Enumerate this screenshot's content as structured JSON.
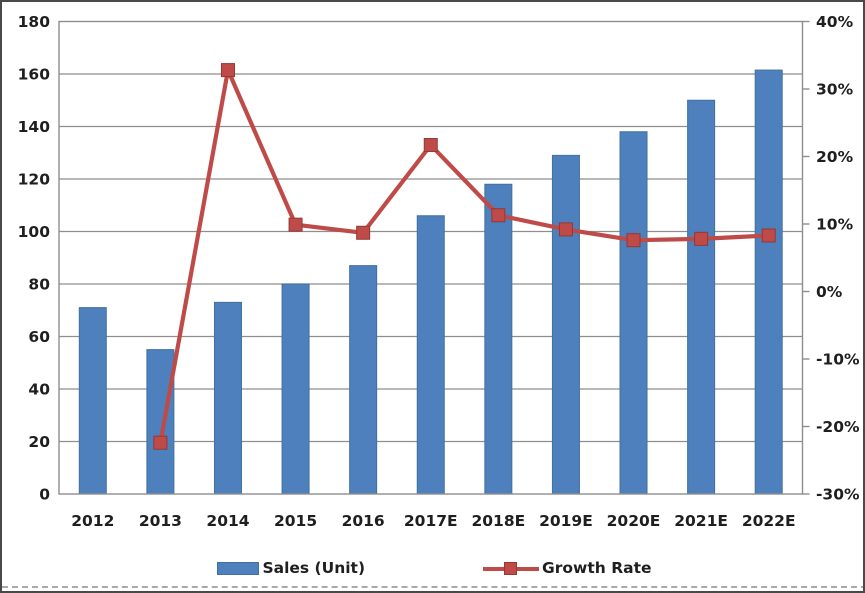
{
  "chart_data": {
    "type": "bar",
    "subtype": "combo-bar-line-dual-axis",
    "title": "",
    "categories": [
      "2012",
      "2013",
      "2014",
      "2015",
      "2016",
      "2017E",
      "2018E",
      "2019E",
      "2020E",
      "2021E",
      "2022E"
    ],
    "series": [
      {
        "name": "Sales (Unit)",
        "type": "bar",
        "axis": "left",
        "values": [
          71,
          55,
          73,
          80,
          87,
          106,
          118,
          129,
          138,
          150,
          161.5
        ]
      },
      {
        "name": "Growth Rate",
        "type": "line",
        "axis": "right",
        "unit": "%",
        "values": [
          null,
          -22.4,
          32.8,
          9.9,
          8.7,
          21.7,
          11.3,
          9.2,
          7.6,
          7.8,
          8.3
        ]
      }
    ],
    "left_axis": {
      "min": 0,
      "max": 180,
      "step": 20,
      "tick_labels": [
        "180",
        "160",
        "140",
        "120",
        "100",
        "80",
        "60",
        "40",
        "20",
        "0"
      ]
    },
    "right_axis": {
      "min": -30,
      "max": 40,
      "step": 10,
      "tick_labels": [
        "40%",
        "30%",
        "20%",
        "10%",
        "0%",
        "-10%",
        "-20%",
        "-30%"
      ]
    },
    "legend": {
      "position": "bottom",
      "entries": [
        "Sales (Unit)",
        "Growth Rate"
      ]
    },
    "grid": true,
    "colors": {
      "bar_fill": "#4d80bd",
      "bar_border": "#41719c",
      "line": "#be4b48",
      "marker_fill": "#be4b48",
      "marker_border": "#953735",
      "grid_line": "#8e8e8e",
      "axis_text": "#1f1f1f",
      "background": "#ffffff"
    }
  }
}
